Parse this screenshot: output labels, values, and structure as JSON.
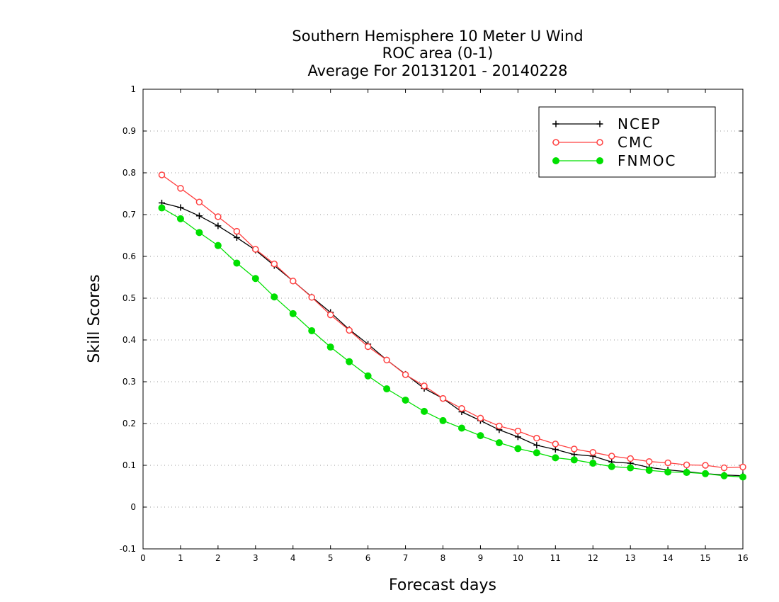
{
  "chart_data": {
    "type": "line",
    "title_lines": [
      "Southern Hemisphere 10 Meter U Wind",
      "ROC area (0-1)",
      "Average For 20131201 - 20140228"
    ],
    "xlabel": "Forecast days",
    "ylabel": "Skill Scores",
    "xlim": [
      0,
      16
    ],
    "ylim": [
      -0.1,
      1
    ],
    "x_ticks": [
      "0",
      "1",
      "2",
      "3",
      "4",
      "5",
      "6",
      "7",
      "8",
      "9",
      "10",
      "11",
      "12",
      "13",
      "14",
      "15",
      "16"
    ],
    "y_ticks": [
      "1",
      "0.9",
      "0.8",
      "0.7",
      "0.6",
      "0.5",
      "0.4",
      "0.3",
      "0.2",
      "0.1",
      "0",
      "-0.1"
    ],
    "grid": "horizontal dotted",
    "legend_position": "top-right",
    "x": [
      0.5,
      1,
      1.5,
      2,
      2.5,
      3,
      3.5,
      4,
      4.5,
      5,
      5.5,
      6,
      6.5,
      7,
      7.5,
      8,
      8.5,
      9,
      9.5,
      10,
      10.5,
      11,
      11.5,
      12,
      12.5,
      13,
      13.5,
      14,
      14.5,
      15,
      15.5,
      16
    ],
    "series": [
      {
        "name": "NCEP",
        "color": "#000000",
        "marker": "plus",
        "values": [
          0.728,
          0.717,
          0.697,
          0.673,
          0.645,
          0.615,
          0.578,
          0.541,
          0.503,
          0.466,
          0.425,
          0.39,
          0.352,
          0.318,
          0.284,
          0.26,
          0.228,
          0.207,
          0.185,
          0.168,
          0.148,
          0.138,
          0.126,
          0.122,
          0.108,
          0.105,
          0.095,
          0.089,
          0.085,
          0.08,
          0.077,
          0.075
        ]
      },
      {
        "name": "CMC",
        "color": "#ff4040",
        "marker": "open-circle",
        "values": [
          0.795,
          0.763,
          0.73,
          0.695,
          0.66,
          0.617,
          0.582,
          0.541,
          0.502,
          0.46,
          0.423,
          0.384,
          0.352,
          0.317,
          0.29,
          0.26,
          0.236,
          0.213,
          0.194,
          0.182,
          0.165,
          0.151,
          0.139,
          0.131,
          0.122,
          0.116,
          0.109,
          0.106,
          0.101,
          0.1,
          0.094,
          0.096
        ]
      },
      {
        "name": "FNMOC",
        "color": "#00e000",
        "marker": "filled-circle",
        "values": [
          0.716,
          0.69,
          0.657,
          0.626,
          0.584,
          0.547,
          0.503,
          0.463,
          0.422,
          0.383,
          0.348,
          0.314,
          0.283,
          0.256,
          0.229,
          0.207,
          0.189,
          0.171,
          0.154,
          0.14,
          0.13,
          0.118,
          0.113,
          0.105,
          0.097,
          0.094,
          0.088,
          0.084,
          0.083,
          0.08,
          0.075,
          0.072
        ]
      }
    ]
  }
}
